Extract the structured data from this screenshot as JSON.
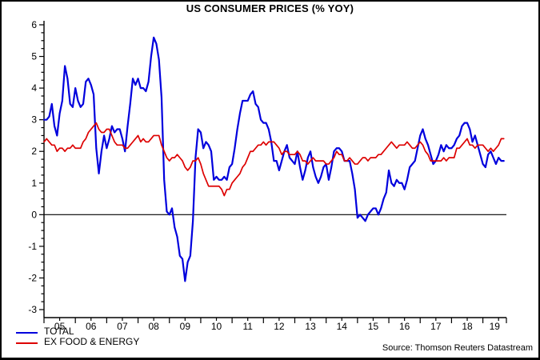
{
  "chart_data": {
    "type": "line",
    "title": "US CONSUMER PRICES (% YOY)",
    "xlabel": "",
    "ylabel": "",
    "ylim": [
      -3,
      6
    ],
    "y_ticks": [
      -3,
      -2,
      -1,
      0,
      1,
      2,
      3,
      4,
      5,
      6
    ],
    "y_minor_step": 0.25,
    "grid": false,
    "zero_line": true,
    "legend_position": "bottom-left",
    "x_start_year": 2005,
    "x_start_month": 1,
    "x_months_total": 177,
    "x_tick_labels": [
      "05",
      "06",
      "07",
      "08",
      "09",
      "10",
      "11",
      "12",
      "13",
      "14",
      "15",
      "16",
      "17",
      "18",
      "19"
    ],
    "series": [
      {
        "name": "TOTAL",
        "color": "#0000DD",
        "values": [
          3.0,
          3.0,
          3.1,
          3.5,
          2.8,
          2.5,
          3.2,
          3.6,
          4.7,
          4.3,
          3.5,
          3.4,
          4.0,
          3.6,
          3.4,
          3.5,
          4.2,
          4.3,
          4.1,
          3.8,
          2.1,
          1.3,
          2.0,
          2.5,
          2.1,
          2.4,
          2.8,
          2.6,
          2.7,
          2.7,
          2.4,
          2.0,
          2.8,
          3.5,
          4.3,
          4.1,
          4.3,
          4.0,
          4.0,
          3.9,
          4.2,
          5.0,
          5.6,
          5.4,
          4.9,
          3.7,
          1.1,
          0.1,
          0.0,
          0.2,
          -0.4,
          -0.7,
          -1.3,
          -1.4,
          -2.1,
          -1.5,
          -1.3,
          -0.2,
          1.8,
          2.7,
          2.6,
          2.1,
          2.3,
          2.2,
          2.0,
          1.1,
          1.2,
          1.1,
          1.1,
          1.2,
          1.1,
          1.5,
          1.6,
          2.1,
          2.7,
          3.2,
          3.6,
          3.6,
          3.6,
          3.8,
          3.9,
          3.5,
          3.4,
          3.0,
          2.9,
          2.9,
          2.7,
          2.3,
          1.7,
          1.7,
          1.4,
          1.7,
          2.0,
          2.2,
          1.8,
          1.7,
          1.6,
          2.0,
          1.5,
          1.1,
          1.4,
          1.8,
          2.0,
          1.5,
          1.2,
          1.0,
          1.2,
          1.5,
          1.6,
          1.1,
          1.5,
          2.0,
          2.1,
          2.1,
          2.0,
          1.7,
          1.7,
          1.7,
          1.3,
          0.8,
          -0.1,
          0.0,
          -0.1,
          -0.2,
          0.0,
          0.1,
          0.2,
          0.2,
          0.0,
          0.2,
          0.5,
          0.7,
          1.4,
          1.0,
          0.9,
          1.1,
          1.0,
          1.0,
          0.8,
          1.1,
          1.5,
          1.6,
          1.7,
          2.1,
          2.5,
          2.7,
          2.4,
          2.2,
          1.9,
          1.6,
          1.7,
          1.9,
          2.2,
          2.0,
          2.2,
          2.1,
          2.1,
          2.2,
          2.4,
          2.5,
          2.8,
          2.9,
          2.9,
          2.7,
          2.3,
          2.5,
          2.2,
          1.9,
          1.6,
          1.5,
          1.9,
          2.0,
          1.8,
          1.6,
          1.8,
          1.7,
          1.7
        ]
      },
      {
        "name": "EX FOOD & ENERGY",
        "color": "#DD0000",
        "values": [
          2.3,
          2.4,
          2.3,
          2.2,
          2.2,
          2.0,
          2.1,
          2.1,
          2.0,
          2.1,
          2.1,
          2.2,
          2.1,
          2.1,
          2.1,
          2.3,
          2.4,
          2.6,
          2.7,
          2.8,
          2.9,
          2.7,
          2.6,
          2.6,
          2.7,
          2.7,
          2.5,
          2.3,
          2.2,
          2.2,
          2.2,
          2.1,
          2.1,
          2.2,
          2.3,
          2.4,
          2.5,
          2.3,
          2.4,
          2.3,
          2.3,
          2.4,
          2.5,
          2.5,
          2.5,
          2.2,
          2.0,
          1.8,
          1.7,
          1.8,
          1.8,
          1.9,
          1.8,
          1.7,
          1.5,
          1.4,
          1.5,
          1.7,
          1.7,
          1.8,
          1.6,
          1.3,
          1.1,
          0.9,
          0.9,
          0.9,
          0.9,
          0.9,
          0.8,
          0.6,
          0.8,
          0.8,
          1.0,
          1.1,
          1.2,
          1.3,
          1.5,
          1.6,
          1.8,
          2.0,
          2.0,
          2.1,
          2.2,
          2.2,
          2.3,
          2.2,
          2.3,
          2.3,
          2.3,
          2.2,
          2.1,
          1.9,
          2.0,
          2.0,
          1.9,
          1.9,
          1.9,
          2.0,
          1.9,
          1.7,
          1.7,
          1.6,
          1.7,
          1.8,
          1.7,
          1.7,
          1.7,
          1.7,
          1.6,
          1.6,
          1.7,
          1.8,
          2.0,
          1.9,
          1.9,
          1.7,
          1.7,
          1.8,
          1.7,
          1.6,
          1.6,
          1.7,
          1.8,
          1.8,
          1.7,
          1.8,
          1.8,
          1.8,
          1.9,
          1.9,
          2.0,
          2.1,
          2.2,
          2.3,
          2.2,
          2.1,
          2.2,
          2.2,
          2.2,
          2.3,
          2.2,
          2.1,
          2.1,
          2.2,
          2.3,
          2.2,
          2.0,
          1.9,
          1.7,
          1.7,
          1.7,
          1.7,
          1.7,
          1.8,
          1.7,
          1.8,
          1.8,
          1.8,
          2.1,
          2.1,
          2.2,
          2.3,
          2.4,
          2.2,
          2.2,
          2.1,
          2.2,
          2.2,
          2.2,
          2.1,
          2.0,
          2.1,
          2.0,
          2.1,
          2.2,
          2.4,
          2.4
        ]
      }
    ],
    "source_note": "Source: Thomson Reuters Datastream",
    "axis_color": "#000000",
    "text_color": "#000000"
  }
}
